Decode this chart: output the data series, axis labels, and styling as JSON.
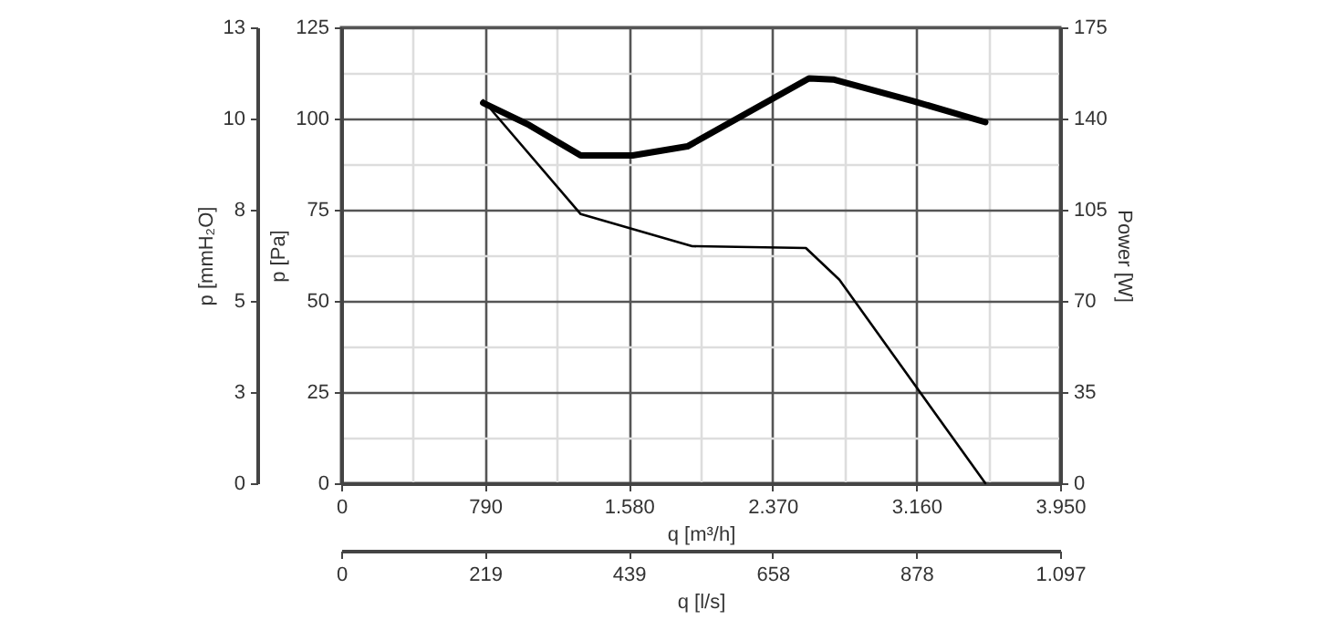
{
  "chart_data": {
    "type": "line",
    "xlabel": "q [m³/h]",
    "ylabel": "p [Pa]",
    "y2label": "Power [W]",
    "y3label": "p [mmH₂O]",
    "x2label": "q [l/s]",
    "xlim": [
      0,
      3950
    ],
    "xticks": [
      0,
      {
        "value": 395,
        "label": null
      },
      790,
      {
        "value": 1185,
        "label": null
      },
      {
        "value": 1580,
        "label": "1.580"
      },
      {
        "value": 1975,
        "label": null
      },
      {
        "value": 2370,
        "label": "2.370"
      },
      {
        "value": 2765,
        "label": null
      },
      {
        "value": 3160,
        "label": "3.160"
      },
      {
        "value": 3555,
        "label": null
      },
      {
        "value": 3950,
        "label": "3.950"
      }
    ],
    "ylim": [
      0,
      125
    ],
    "yticks": [
      0,
      {
        "value": 12.5,
        "label": null
      },
      25,
      {
        "value": 37.5,
        "label": null
      },
      50,
      {
        "value": 62.5,
        "label": null
      },
      75,
      {
        "value": 87.5,
        "label": null
      },
      100,
      {
        "value": 112.5,
        "label": null
      },
      125
    ],
    "y2lim": [
      0,
      175
    ],
    "y2ticks": [
      0,
      35,
      70,
      105,
      140,
      175
    ],
    "y3lim": [
      0,
      12.75
    ],
    "y3ticks": [
      0,
      {
        "value": 2.55,
        "label": "3"
      },
      {
        "value": 5.1,
        "label": "5"
      },
      {
        "value": 7.65,
        "label": "8"
      },
      {
        "value": 10.2,
        "label": "10"
      },
      {
        "value": 12.75,
        "label": "13"
      }
    ],
    "x2lim": [
      0,
      1097.2
    ],
    "x2ticks": [
      0,
      {
        "value": 219.4,
        "label": "219"
      },
      {
        "value": 438.9,
        "label": "439"
      },
      {
        "value": 658.3,
        "label": "658"
      },
      {
        "value": 877.8,
        "label": "878"
      },
      {
        "value": 1097.2,
        "label": "1.097"
      }
    ],
    "grid": true,
    "marker": "none",
    "line_style": "solid",
    "series": [
      {
        "color": "#000000",
        "x": [
          780,
          1316,
          1928,
          2553,
          2737,
          3539
        ],
        "values": [
          105,
          73.8,
          65,
          64.5,
          55.8,
          0
        ]
      },
      {
        "color": "#000000",
        "axis": "y2",
        "x": [
          780,
          1033,
          1316,
          1601,
          1902,
          2570,
          2704,
          3138,
          3539
        ],
        "values": [
          146,
          137.5,
          125.8,
          125.8,
          129.3,
          155.4,
          155,
          146.8,
          138.6
        ]
      }
    ]
  }
}
